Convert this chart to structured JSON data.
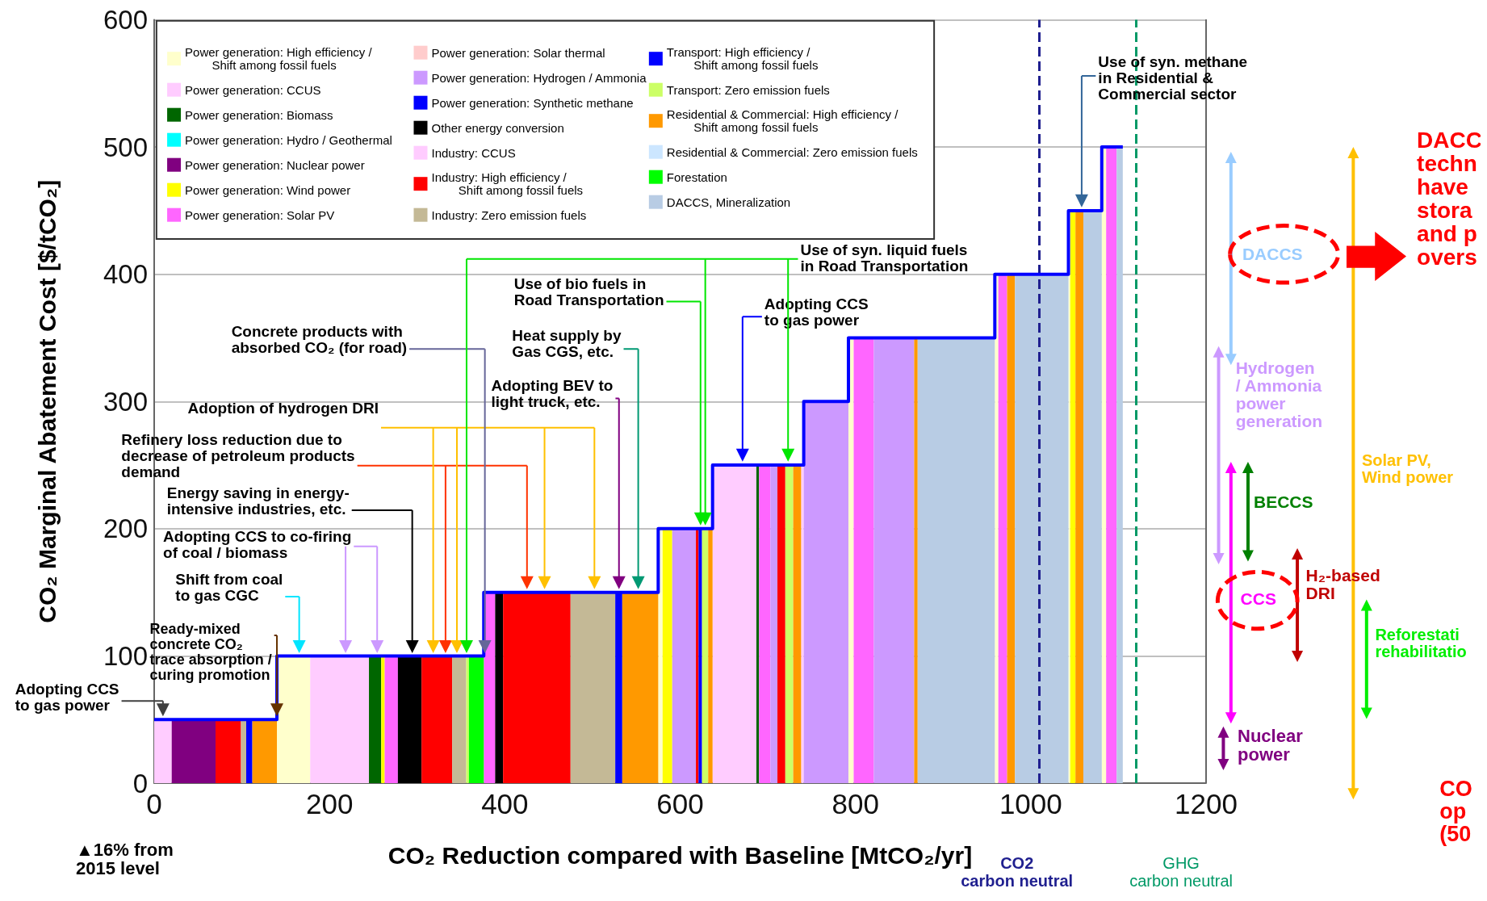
{
  "chart_data": {
    "type": "area",
    "xlabel": "CO₂ Reduction compared with Baseline [MtCO₂/yr]",
    "ylabel": "CO₂ Marginal Abatement Cost [$/tCO₂]",
    "xlim": [
      0,
      1200
    ],
    "xticks": [
      0,
      200,
      400,
      600,
      800,
      1000,
      1200
    ],
    "ylim": [
      0,
      600
    ],
    "yticks": [
      0,
      100,
      200,
      300,
      400,
      500,
      600
    ],
    "grid": "y",
    "legend": "top left",
    "marker": "none",
    "series": [
      {
        "name": "Power generation: High efficiency /\n        Shift among fossil fuels",
        "color": "#ffffcc",
        "x": [
          140,
          178
        ],
        "values": [
          100,
          100
        ]
      },
      {
        "color": "#ffffcc",
        "x": [
          575,
          580
        ],
        "values": [
          200,
          200
        ]
      },
      {
        "color": "#ffffcc",
        "x": [
          792,
          798
        ],
        "values": [
          350,
          350
        ]
      },
      {
        "color": "#ffffcc",
        "x": [
          959,
          963
        ],
        "values": [
          400,
          400
        ]
      },
      {
        "color": "#ffffcc",
        "x": [
          1043,
          1045
        ],
        "values": [
          450,
          450
        ]
      },
      {
        "color": "#ffffcc",
        "x": [
          1081,
          1086
        ],
        "values": [
          500,
          500
        ]
      },
      {
        "name": "Power generation: CCUS",
        "color": "#ffccff",
        "x": [
          0,
          20
        ],
        "values": [
          50,
          50
        ]
      },
      {
        "color": "#ffccff",
        "x": [
          178,
          245
        ],
        "values": [
          100,
          100
        ]
      },
      {
        "color": "#ffccff",
        "x": [
          637,
          687
        ],
        "values": [
          250,
          250
        ]
      },
      {
        "color": "#ffccff",
        "x": [
          738,
          741
        ],
        "values": [
          250,
          250
        ]
      },
      {
        "name": "Power generation: Biomass",
        "color": "#006600",
        "x": [
          245,
          259
        ],
        "values": [
          100,
          100
        ]
      },
      {
        "color": "#006600",
        "x": [
          687,
          690
        ],
        "values": [
          250,
          250
        ]
      },
      {
        "name": "Power generation: Hydro / Geothermal",
        "color": "#00ffff"
      },
      {
        "name": "Power generation: Nuclear power",
        "color": "#800080",
        "x": [
          20,
          70
        ],
        "values": [
          50,
          50
        ]
      },
      {
        "name": "Power generation: Wind power",
        "color": "#ffff00",
        "x": [
          259,
          263
        ],
        "values": [
          100,
          100
        ]
      },
      {
        "color": "#ffff00",
        "x": [
          580,
          591
        ],
        "values": [
          200,
          200
        ]
      },
      {
        "color": "#ffff00",
        "x": [
          1045,
          1051
        ],
        "values": [
          450,
          450
        ]
      },
      {
        "name": "Power generation: Solar PV",
        "color": "#ff66ff",
        "x": [
          263,
          278
        ],
        "values": [
          100,
          100
        ]
      },
      {
        "color": "#ff66ff",
        "x": [
          376,
          389
        ],
        "values": [
          150,
          150
        ]
      },
      {
        "color": "#ff66ff",
        "x": [
          690,
          703
        ],
        "values": [
          250,
          250
        ]
      },
      {
        "color": "#ff66ff",
        "x": [
          798,
          821
        ],
        "values": [
          350,
          350
        ]
      },
      {
        "color": "#ff66ff",
        "x": [
          963,
          973
        ],
        "values": [
          400,
          400
        ]
      },
      {
        "color": "#ff66ff",
        "x": [
          1086,
          1098
        ],
        "values": [
          500,
          500
        ]
      },
      {
        "name": "Power generation: Solar thermal",
        "color": "#ffcccc"
      },
      {
        "name": "Power generation: Hydrogen / Ammonia",
        "color": "#cc99ff",
        "x": [
          591,
          618
        ],
        "values": [
          200,
          200
        ]
      },
      {
        "color": "#cc99ff",
        "x": [
          703,
          711
        ],
        "values": [
          250,
          250
        ]
      },
      {
        "color": "#cc99ff",
        "x": [
          741,
          792
        ],
        "values": [
          300,
          300
        ]
      },
      {
        "color": "#cc99ff",
        "x": [
          821,
          867
        ],
        "values": [
          350,
          350
        ]
      },
      {
        "name": "Power generation: Synthetic methane",
        "color": "#0000ff"
      },
      {
        "name": "Other energy conversion",
        "color": "#000000",
        "x": [
          278,
          305
        ],
        "values": [
          100,
          100
        ]
      },
      {
        "color": "#000000",
        "x": [
          389,
          398
        ],
        "values": [
          150,
          150
        ]
      },
      {
        "name": "Industry: CCUS",
        "color": "#ffccff"
      },
      {
        "name": "Industry: High efficiency /\n        Shift among fossil fuels",
        "color": "#ff0000",
        "x": [
          70,
          99
        ],
        "values": [
          50,
          50
        ]
      },
      {
        "color": "#ff0000",
        "x": [
          305,
          340
        ],
        "values": [
          100,
          100
        ]
      },
      {
        "color": "#ff0000",
        "x": [
          398,
          475
        ],
        "values": [
          150,
          150
        ]
      },
      {
        "color": "#ff0000",
        "x": [
          618,
          621
        ],
        "values": [
          200,
          200
        ]
      },
      {
        "color": "#ff0000",
        "x": [
          711,
          720
        ],
        "values": [
          250,
          250
        ]
      },
      {
        "name": "Industry: Zero emission fuels",
        "color": "#c4b996",
        "x": [
          99,
          105
        ],
        "values": [
          50,
          50
        ]
      },
      {
        "color": "#c4b996",
        "x": [
          340,
          356
        ],
        "values": [
          100,
          100
        ]
      },
      {
        "color": "#c4b996",
        "x": [
          475,
          526
        ],
        "values": [
          150,
          150
        ]
      },
      {
        "name": "Transport: High efficiency /\n        Shift among fossil fuels",
        "color": "#0000ff",
        "x": [
          105,
          112
        ],
        "values": [
          50,
          50
        ]
      },
      {
        "color": "#0000ff",
        "x": [
          526,
          534
        ],
        "values": [
          150,
          150
        ]
      },
      {
        "color": "#0000ff",
        "x": [
          621,
          625
        ],
        "values": [
          200,
          200
        ]
      },
      {
        "name": "Transport: Zero emission fuels",
        "color": "#ccff66",
        "x": [
          356,
          359
        ],
        "values": [
          100,
          100
        ]
      },
      {
        "color": "#ccff66",
        "x": [
          625,
          632
        ],
        "values": [
          200,
          200
        ]
      },
      {
        "color": "#ccff66",
        "x": [
          720,
          729
        ],
        "values": [
          250,
          250
        ]
      },
      {
        "name": "Residential & Commercial: High efficiency /\n        Shift among fossil fuels",
        "color": "#ff9900",
        "x": [
          112,
          140
        ],
        "values": [
          50,
          50
        ]
      },
      {
        "color": "#ff9900",
        "x": [
          534,
          575
        ],
        "values": [
          150,
          150
        ]
      },
      {
        "color": "#ff9900",
        "x": [
          632,
          637
        ],
        "values": [
          200,
          200
        ]
      },
      {
        "color": "#ff9900",
        "x": [
          729,
          738
        ],
        "values": [
          250,
          250
        ]
      },
      {
        "color": "#ff9900",
        "x": [
          867,
          871
        ],
        "values": [
          350,
          350
        ]
      },
      {
        "color": "#ff9900",
        "x": [
          973,
          982
        ],
        "values": [
          400,
          400
        ]
      },
      {
        "color": "#ff9900",
        "x": [
          1051,
          1060
        ],
        "values": [
          450,
          450
        ]
      },
      {
        "name": "Residential & Commercial: Zero emission fuels",
        "color": "#cce6ff"
      },
      {
        "name": "Forestation",
        "color": "#00ff00",
        "x": [
          359,
          376
        ],
        "values": [
          100,
          100
        ]
      },
      {
        "name": "DACCS, Mineralization",
        "color": "#b8cce4",
        "x": [
          871,
          959
        ],
        "values": [
          350,
          350
        ]
      },
      {
        "color": "#b8cce4",
        "x": [
          982,
          1043
        ],
        "values": [
          400,
          400
        ]
      },
      {
        "color": "#b8cce4",
        "x": [
          1060,
          1081
        ],
        "values": [
          450,
          450
        ]
      },
      {
        "color": "#b8cce4",
        "x": [
          1098,
          1105
        ],
        "values": [
          500,
          500
        ]
      },
      {
        "type": "step",
        "color": "#0000ff",
        "x": [
          0,
          140,
          376,
          575,
          637,
          741,
          792,
          959,
          1043,
          1081,
          1105
        ],
        "values": [
          50,
          100,
          150,
          200,
          250,
          300,
          350,
          400,
          450,
          500,
          500
        ]
      }
    ],
    "ref_lines": [
      {
        "axis": "x",
        "value": 1010,
        "label": "CO2\ncarbon neutral",
        "color": "#1f1f8f",
        "line_style": "dashed"
      },
      {
        "axis": "x",
        "value": 1120,
        "label": "GHG\ncarbon neutral",
        "color": "#009966",
        "line_style": "dashed"
      }
    ],
    "annotations": [
      {
        "text": "Adopting CCS\nto gas power",
        "x": 10,
        "y": 50
      },
      {
        "text": "Ready-mixed\nconcrete CO₂\ntrace absorption /\ncuring promotion",
        "x": 140,
        "y": 50
      },
      "Shift from coal\nto gas CGC",
      "Adopting CCS to co-firing\nof coal / biomass",
      "Energy saving in energy-\nintensive industries, etc.",
      "Refinery loss reduction due to\ndecrease of petroleum products\ndemand",
      "Adoption of hydrogen DRI",
      "Concrete products with\nabsorbed CO₂ (for road)",
      "Adopting BEV to\nlight truck, etc.",
      "Heat supply by\nGas CGS, etc.",
      "Use of bio fuels in\nRoad Transportation",
      "Adopting CCS\nto gas power",
      "Use of syn. liquid fuels\nin Road Transportation",
      "Use of syn. methane\nin Residential &\nCommercial sector",
      "DACCS",
      "Hydrogen\n/ Ammonia\npower\ngeneration",
      "Solar PV,\nWind power",
      "BECCS",
      "H₂-based\nDRI",
      "CCS",
      "Reforestati\nrehabilitatio",
      "Nuclear\npower",
      "DACC\ntechn\nhave\nstora\nand p\novers",
      "CO\nop\n(50",
      "▲16% from\n2015 level"
    ]
  }
}
